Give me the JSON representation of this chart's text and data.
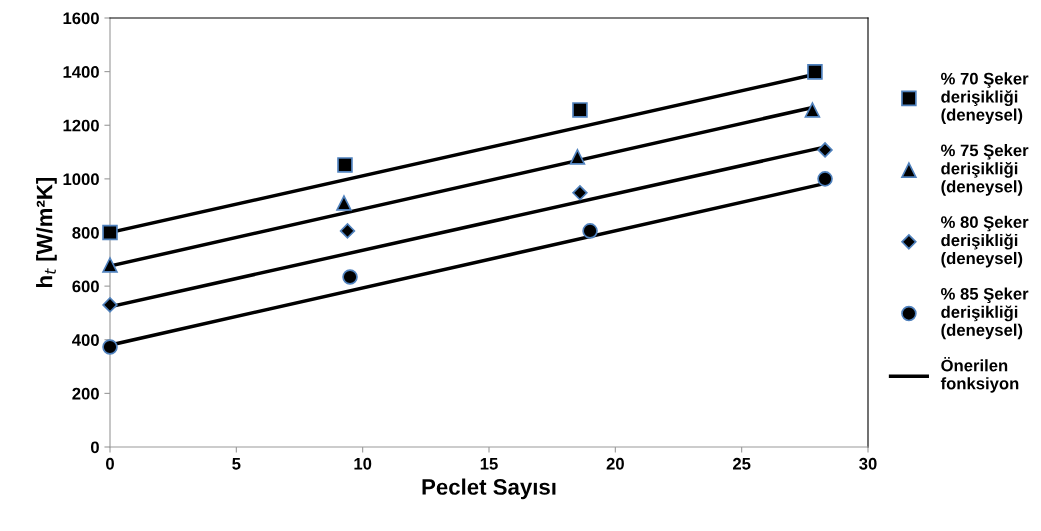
{
  "chart_data": {
    "type": "scatter",
    "xlabel": "Peclet Sayısı",
    "ylabel": "h$_{t}$ [W/m²K]",
    "xlim": [
      0,
      30
    ],
    "xticks": [
      0,
      5,
      10,
      15,
      20,
      25,
      30
    ],
    "ylim": [
      0,
      1600
    ],
    "yticks": [
      0,
      200,
      400,
      600,
      800,
      1000,
      1200,
      1400,
      1600
    ],
    "grid": false,
    "legend": "right",
    "series": [
      {
        "name": "% 70 Şeker derişikliği (deneysel)",
        "marker": "square",
        "color": "#000000",
        "x": [
          0,
          9.3,
          18.6,
          27.9
        ],
        "values": [
          800,
          1052,
          1257,
          1399
        ]
      },
      {
        "name": "% 75 Şeker derişikliği (deneysel)",
        "marker": "triangle",
        "color": "#000000",
        "x": [
          0,
          9.26,
          18.5,
          27.8
        ],
        "values": [
          679,
          910,
          1082,
          1257
        ]
      },
      {
        "name": "% 80 Şeker derişikliği (deneysel)",
        "marker": "diamond",
        "color": "#000000",
        "x": [
          0,
          9.4,
          18.6,
          28.3
        ],
        "values": [
          530,
          806,
          948,
          1108
        ]
      },
      {
        "name": "% 85 Şeker derişikliği (deneysel)",
        "marker": "circle",
        "color": "#000000",
        "x": [
          0,
          9.5,
          19.0,
          28.3
        ],
        "values": [
          373,
          634,
          806,
          1000
        ]
      },
      {
        "name": "Önerilen fonksiyon",
        "type": "line",
        "color": "#000000",
        "x": [
          0,
          27.8
        ],
        "values": [
          800,
          1388
        ]
      },
      {
        "type": "line",
        "color": "#000000",
        "x": [
          0,
          27.7
        ],
        "values": [
          675,
          1264
        ]
      },
      {
        "type": "line",
        "color": "#000000",
        "x": [
          0,
          28.3
        ],
        "values": [
          523,
          1119
        ]
      },
      {
        "type": "line",
        "color": "#000000",
        "x": [
          0,
          28.2
        ],
        "values": [
          380,
          981
        ]
      }
    ]
  }
}
